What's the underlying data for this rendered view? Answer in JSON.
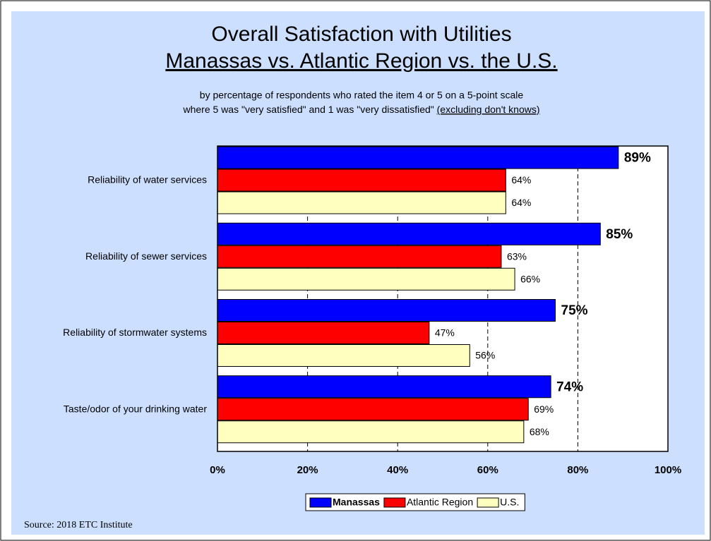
{
  "chart_data": {
    "type": "hbar",
    "title": "Overall Satisfaction with Utilities",
    "subtitle": "Manassas vs. Atlantic Region vs. the U.S.",
    "note_line1": "by percentage of respondents who rated the item 4 or 5 on a 5-point scale",
    "note_line2": "where 5 was \"very satisfied\" and 1 was \"very dissatisfied\"",
    "note_line2_underlined": "(excluding don't knows)",
    "source": "Source:  2018 ETC Institute",
    "categories": [
      "Reliability of water services",
      "Reliability of sewer services",
      "Reliability of stormwater systems",
      "Taste/odor of your drinking water"
    ],
    "series": [
      {
        "name": "Manassas",
        "color": "#0000ff",
        "values": [
          89,
          85,
          75,
          74
        ],
        "value_labels": [
          "89%",
          "85%",
          "75%",
          "74%"
        ]
      },
      {
        "name": "Atlantic Region",
        "color": "#ff0000",
        "values": [
          64,
          63,
          47,
          69
        ],
        "value_labels": [
          "64%",
          "63%",
          "47%",
          "69%"
        ]
      },
      {
        "name": "U.S.",
        "color": "#ffffc0",
        "values": [
          64,
          66,
          56,
          68
        ],
        "value_labels": [
          "64%",
          "66%",
          "56%",
          "68%"
        ]
      }
    ],
    "xlim": [
      0,
      100
    ],
    "xticks": [
      {
        "value": 0,
        "label": "0%"
      },
      {
        "value": 20,
        "label": "20%"
      },
      {
        "value": 40,
        "label": "40%"
      },
      {
        "value": 60,
        "label": "60%"
      },
      {
        "value": 80,
        "label": "80%"
      },
      {
        "value": 100,
        "label": "100%"
      }
    ],
    "grid": true,
    "legend": "bottom"
  }
}
